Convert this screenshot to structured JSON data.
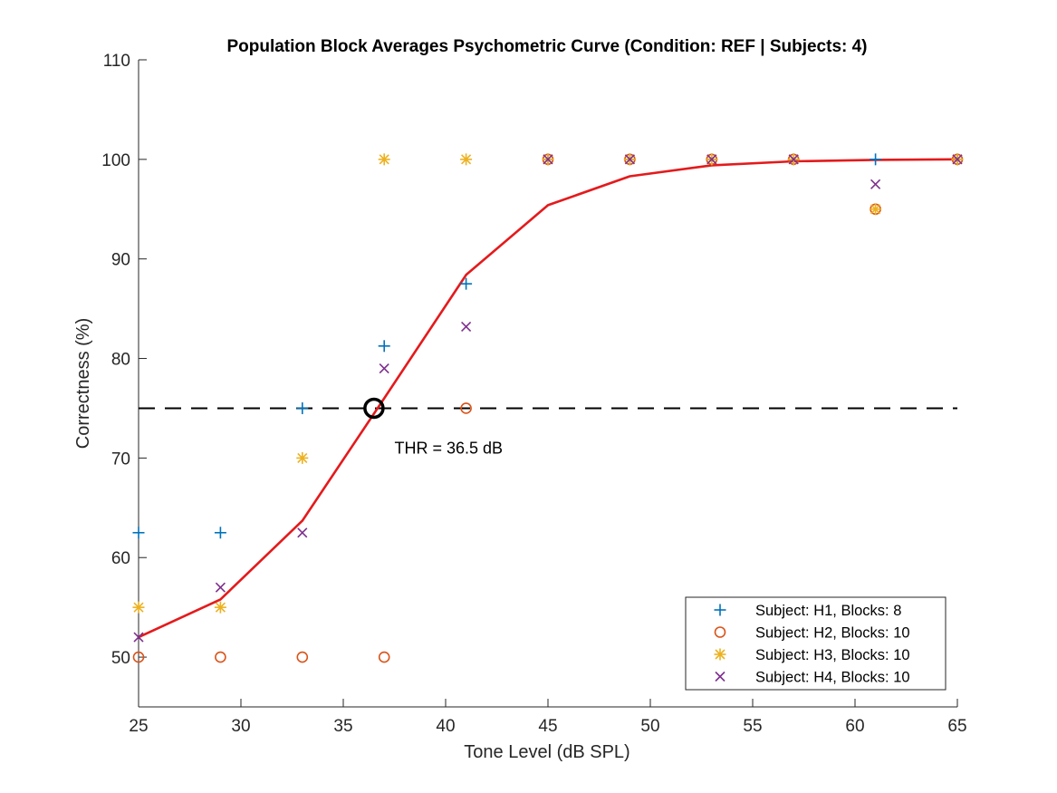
{
  "chart_data": {
    "type": "scatter",
    "title": "Population Block Averages Psychometric Curve (Condition: REF | Subjects: 4)",
    "xlabel": "Tone Level (dB SPL)",
    "ylabel": "Correctness (%)",
    "xlim": [
      25,
      65
    ],
    "ylim": [
      45,
      110
    ],
    "x_ticks": [
      25,
      30,
      35,
      40,
      45,
      50,
      55,
      60,
      65
    ],
    "y_ticks": [
      50,
      60,
      70,
      80,
      90,
      100,
      110
    ],
    "x_tick_labels": [
      "25",
      "30",
      "35",
      "40",
      "45",
      "50",
      "55",
      "60",
      "65"
    ],
    "y_tick_labels": [
      "50",
      "60",
      "70",
      "80",
      "90",
      "100",
      "110"
    ],
    "grid": false,
    "legend_position": "bottom-right",
    "series": [
      {
        "name": "Subject: H1, Blocks: 8",
        "marker": "plus",
        "color": "#0072BD",
        "x": [
          25,
          29,
          33,
          37,
          41,
          45,
          49,
          53,
          57,
          61,
          65
        ],
        "y": [
          62.5,
          62.5,
          75,
          81.25,
          87.5,
          100,
          100,
          100,
          100,
          100,
          100
        ]
      },
      {
        "name": "Subject: H2, Blocks: 10",
        "marker": "circle",
        "color": "#D95319",
        "x": [
          25,
          29,
          33,
          37,
          41,
          45,
          49,
          53,
          57,
          61,
          65
        ],
        "y": [
          50,
          50,
          50,
          50,
          75,
          100,
          100,
          100,
          100,
          95,
          100
        ]
      },
      {
        "name": "Subject: H3, Blocks: 10",
        "marker": "asterisk",
        "color": "#EDB120",
        "x": [
          25,
          29,
          33,
          37,
          41,
          45,
          49,
          53,
          57,
          61,
          65
        ],
        "y": [
          55,
          55,
          70,
          100,
          100,
          100,
          100,
          100,
          100,
          95,
          100
        ]
      },
      {
        "name": "Subject: H4, Blocks: 10",
        "marker": "x",
        "color": "#7E2F8E",
        "x": [
          25,
          29,
          33,
          37,
          41,
          45,
          49,
          53,
          57,
          61,
          65
        ],
        "y": [
          52,
          57,
          62.5,
          79,
          83.2,
          100,
          100,
          100,
          100,
          97.5,
          100
        ]
      }
    ],
    "fit_curve": {
      "color": "#E41A1C",
      "x": [
        25,
        29,
        33,
        37,
        41,
        45,
        49,
        53,
        57,
        61,
        65
      ],
      "y": [
        52,
        55.8,
        63.7,
        76,
        88.4,
        95.4,
        98.3,
        99.4,
        99.8,
        99.95,
        100
      ]
    },
    "threshold_line": {
      "y": 75,
      "style": "dashed",
      "color": "#000000"
    },
    "threshold_point": {
      "x": 36.5,
      "y": 75,
      "marker": "circle",
      "color": "#000000"
    },
    "annotation": {
      "text": "THR = 36.5 dB",
      "x": 37.5,
      "y": 71
    }
  }
}
